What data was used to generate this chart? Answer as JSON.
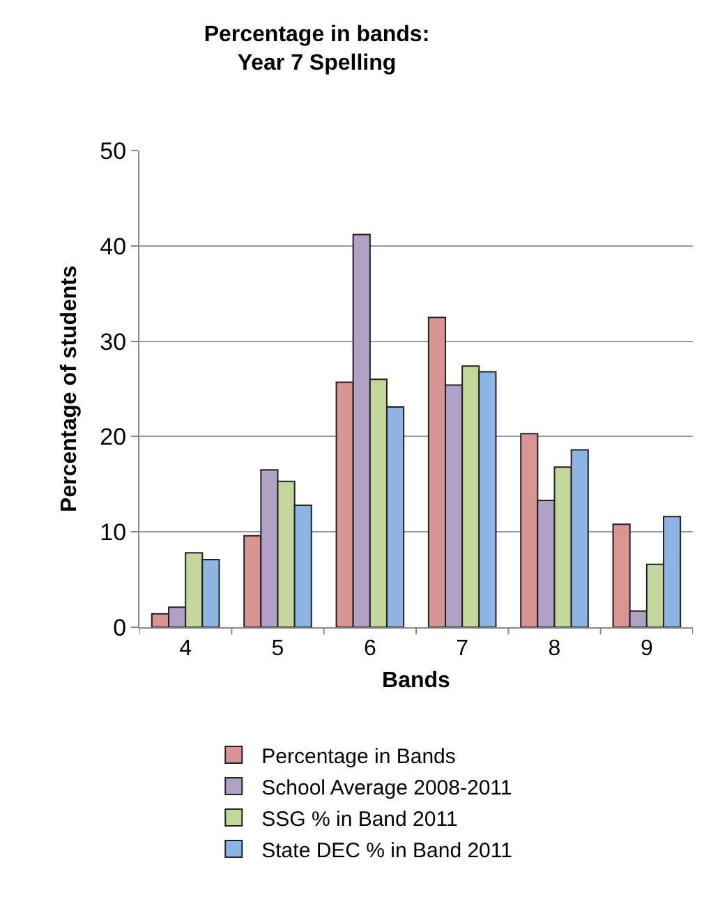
{
  "chart_data": {
    "type": "bar",
    "title": "Percentage in bands:\nYear 7 Spelling",
    "xlabel": "Bands",
    "ylabel": "Percentage of students",
    "categories": [
      "4",
      "5",
      "6",
      "7",
      "8",
      "9"
    ],
    "series": [
      {
        "name": "Percentage in Bands",
        "color": "#d99594",
        "values": [
          1.4,
          9.6,
          25.7,
          32.5,
          20.3,
          10.8
        ]
      },
      {
        "name": "School Average 2008-2011",
        "color": "#b2a1c7",
        "values": [
          2.1,
          16.5,
          41.2,
          25.4,
          13.3,
          1.7
        ]
      },
      {
        "name": "SSG % in Band 2011",
        "color": "#c3d69b",
        "values": [
          7.8,
          15.3,
          26.0,
          27.4,
          16.8,
          6.6
        ]
      },
      {
        "name": "State DEC % in Band 2011",
        "color": "#8eb4e3",
        "values": [
          7.1,
          12.8,
          23.1,
          26.8,
          18.6,
          11.6
        ]
      }
    ],
    "ylim": [
      0,
      50
    ],
    "yticks": [
      0,
      10,
      20,
      30,
      40,
      50
    ],
    "grid": "y",
    "legend": "bottom"
  }
}
